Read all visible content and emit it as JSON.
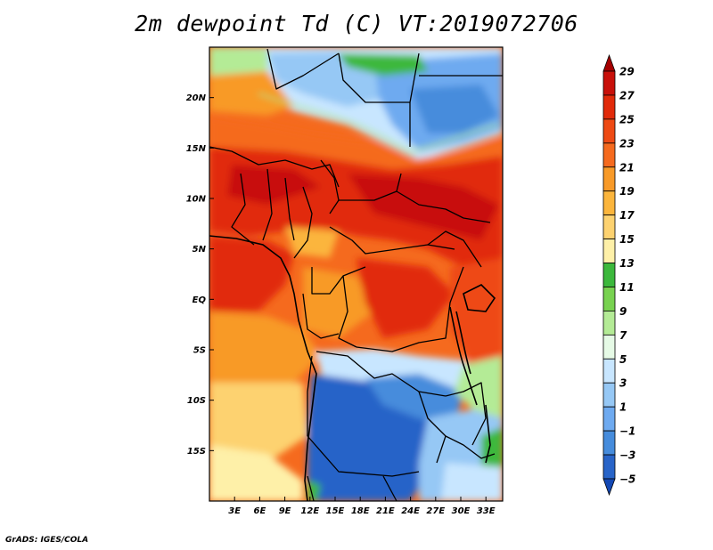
{
  "title": "2m dewpoint Td (C) VT:2019072706",
  "credit": "GrADS: IGES/COLA",
  "map": {
    "lat_range": [
      -20,
      25
    ],
    "lon_range": [
      0,
      35
    ],
    "lat_labels": [
      "20N",
      "15N",
      "10N",
      "5N",
      "EQ",
      "5S",
      "10S",
      "15S"
    ],
    "lon_labels": [
      "3E",
      "6E",
      "9E",
      "12E",
      "15E",
      "18E",
      "21E",
      "24E",
      "27E",
      "30E",
      "33E"
    ]
  },
  "colorbar": {
    "labels": [
      "29",
      "27",
      "25",
      "23",
      "21",
      "19",
      "17",
      "15",
      "13",
      "11",
      "9",
      "7",
      "5",
      "3",
      "1",
      "-1",
      "-3",
      "-5"
    ],
    "colors": [
      "#a50000",
      "#c8100a",
      "#e12a0a",
      "#ee4a14",
      "#f56a1e",
      "#f89a28",
      "#fbb53c",
      "#fdd270",
      "#fef0a8",
      "#3cb83c",
      "#78d250",
      "#b4eb96",
      "#e6fae6",
      "#c8e6ff",
      "#96c8f5",
      "#6eaaf0",
      "#468cdc",
      "#2864c8",
      "#1448b4"
    ]
  },
  "palette": {
    "very_hot": "#c8100a",
    "hot": "#e12a0a",
    "warm": "#ee4a14",
    "orange": "#f56a1e",
    "light_orange": "#f89a28",
    "amber": "#fbb53c",
    "yellow": "#fdd270",
    "pale_yellow": "#fef0a8",
    "green": "#3cb83c",
    "light_green": "#b4eb96",
    "pale_blue": "#c8e6ff",
    "light_blue": "#96c8f5",
    "blue": "#6eaaf0",
    "mid_blue": "#468cdc",
    "deep_blue": "#2864c8"
  }
}
